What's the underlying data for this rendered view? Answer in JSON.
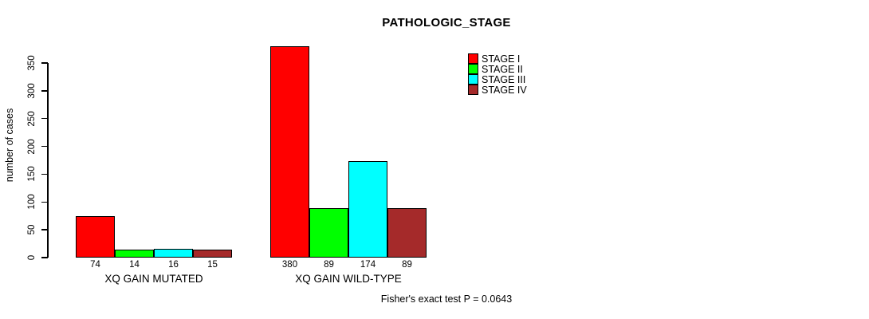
{
  "title": "PATHOLOGIC_STAGE",
  "footer": "Fisher's exact test P = 0.0643",
  "chart_data": {
    "type": "bar",
    "title": "PATHOLOGIC_STAGE",
    "xlabel": "",
    "ylabel": "number of cases",
    "categories": [
      "XQ GAIN MUTATED",
      "XQ GAIN WILD-TYPE"
    ],
    "series": [
      {
        "name": "STAGE I",
        "color": "#ff0000",
        "values": [
          74,
          380
        ]
      },
      {
        "name": "STAGE II",
        "color": "#00ff00",
        "values": [
          14,
          89
        ]
      },
      {
        "name": "STAGE III",
        "color": "#00ffff",
        "values": [
          16,
          174
        ]
      },
      {
        "name": "STAGE IV",
        "color": "#a52a2a",
        "values": [
          15,
          89
        ]
      }
    ],
    "bar_value_labels": [
      [
        "74",
        "14",
        "16",
        "15"
      ],
      [
        "380",
        "89",
        "174",
        "89"
      ]
    ],
    "y_ticks": [
      0,
      50,
      100,
      150,
      200,
      250,
      300,
      350
    ],
    "ylim": [
      0,
      380
    ],
    "grid": false,
    "legend_position": "top-right",
    "bar_border_color": "#000000",
    "annotation": "Fisher's exact test P = 0.0643"
  }
}
